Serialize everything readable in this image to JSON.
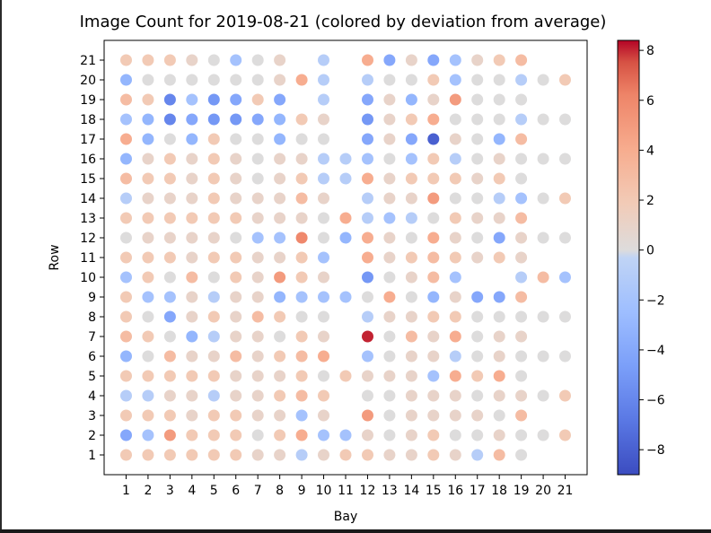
{
  "chart_data": {
    "type": "scatter",
    "title": "Image Count for 2019-08-21 (colored by deviation from average)",
    "xlabel": "Bay",
    "ylabel": "Row",
    "x_ticks": [
      "1",
      "2",
      "3",
      "4",
      "5",
      "6",
      "7",
      "8",
      "9",
      "10",
      "11",
      "12",
      "13",
      "14",
      "15",
      "16",
      "17",
      "18",
      "19",
      "20",
      "21"
    ],
    "y_ticks": [
      "1",
      "2",
      "3",
      "4",
      "5",
      "6",
      "7",
      "8",
      "9",
      "10",
      "11",
      "12",
      "13",
      "14",
      "15",
      "16",
      "17",
      "18",
      "19",
      "20",
      "21"
    ],
    "xlim": [
      0,
      22
    ],
    "ylim": [
      0,
      22
    ],
    "colorbar": {
      "colormap": "coolwarm",
      "range": [
        -9,
        8.4
      ],
      "ticks": [
        "-8",
        "-6",
        "-4",
        "-2",
        "0",
        "2",
        "4",
        "6",
        "8"
      ]
    },
    "grid": false,
    "rows": {
      "21": [
        2,
        2,
        2,
        1,
        0,
        -2,
        0,
        1,
        null,
        -1,
        null,
        4,
        -4,
        1,
        -4,
        -2,
        1,
        2,
        3,
        null,
        null
      ],
      "20": [
        -3,
        0,
        0,
        0,
        0,
        0,
        0,
        1,
        4,
        -1,
        null,
        -1,
        0,
        0,
        2,
        -2,
        0,
        0,
        -1,
        0,
        2
      ],
      "19": [
        3,
        2,
        -6,
        -2,
        -5,
        -4,
        2,
        -4,
        null,
        -1,
        null,
        -4,
        1,
        -3,
        1,
        5,
        0,
        0,
        0,
        null,
        null
      ],
      "18": [
        -2,
        -3,
        -6,
        -4,
        -5,
        -5,
        -4,
        -3,
        2,
        1,
        null,
        -5,
        1,
        2,
        4,
        0,
        0,
        0,
        -1,
        0,
        0
      ],
      "17": [
        4,
        -3,
        0,
        -3,
        2,
        0,
        0,
        -3,
        0,
        0,
        null,
        -4,
        1,
        -4,
        -8,
        1,
        0,
        -3,
        3,
        null,
        null
      ],
      "16": [
        -3,
        1,
        2,
        1,
        2,
        1,
        0,
        1,
        1,
        -1,
        -1,
        -2,
        0,
        -2,
        2,
        -1,
        0,
        1,
        0,
        0,
        0
      ],
      "15": [
        3,
        2,
        2,
        1,
        2,
        1,
        0,
        1,
        2,
        -1,
        -1,
        4,
        1,
        2,
        2,
        2,
        1,
        2,
        0,
        null,
        null
      ],
      "14": [
        -1,
        1,
        1,
        1,
        2,
        1,
        1,
        1,
        3,
        1,
        null,
        -1,
        1,
        1,
        5,
        0,
        0,
        -1,
        -2,
        0,
        2
      ],
      "13": [
        2,
        2,
        2,
        2,
        2,
        2,
        1,
        1,
        1,
        0,
        4,
        -1,
        -2,
        -1,
        0,
        2,
        1,
        1,
        3,
        null,
        null
      ],
      "12": [
        0,
        1,
        1,
        1,
        1,
        0,
        -2,
        -2,
        6,
        0,
        -3,
        4,
        1,
        0,
        4,
        1,
        0,
        -4,
        1,
        0,
        0
      ],
      "11": [
        2,
        2,
        2,
        1,
        2,
        2,
        1,
        1,
        2,
        -2,
        null,
        4,
        1,
        2,
        3,
        2,
        1,
        2,
        1,
        null,
        null
      ],
      "10": [
        -2,
        2,
        0,
        3,
        0,
        2,
        1,
        5,
        2,
        1,
        null,
        -5,
        0,
        1,
        3,
        -2,
        null,
        null,
        -1,
        3,
        -2
      ],
      "9": [
        2,
        -2,
        -2,
        1,
        -1,
        1,
        1,
        -3,
        -2,
        -2,
        -2,
        0,
        4,
        0,
        -3,
        1,
        -4,
        -4,
        3,
        null,
        null
      ],
      "8": [
        2,
        0,
        -4,
        1,
        2,
        1,
        3,
        2,
        0,
        0,
        null,
        -1,
        1,
        1,
        2,
        2,
        0,
        0,
        0,
        0,
        0
      ],
      "7": [
        3,
        2,
        0,
        -3,
        -1,
        1,
        1,
        0,
        2,
        1,
        null,
        8,
        0,
        3,
        1,
        4,
        0,
        1,
        1,
        null,
        null
      ],
      "6": [
        -3,
        0,
        3,
        1,
        1,
        3,
        1,
        2,
        3,
        4,
        null,
        -2,
        0,
        1,
        1,
        -1,
        0,
        1,
        0,
        0,
        0
      ],
      "5": [
        2,
        2,
        2,
        2,
        2,
        1,
        1,
        1,
        2,
        0,
        2,
        1,
        1,
        1,
        -2,
        4,
        2,
        4,
        0,
        null,
        null
      ],
      "4": [
        -1,
        -1,
        1,
        1,
        -1,
        1,
        1,
        2,
        3,
        2,
        null,
        0,
        0,
        1,
        1,
        1,
        0,
        1,
        1,
        0,
        2
      ],
      "3": [
        2,
        2,
        2,
        1,
        2,
        2,
        1,
        1,
        -2,
        1,
        null,
        5,
        0,
        1,
        1,
        1,
        1,
        0,
        3,
        null,
        null
      ],
      "2": [
        -4,
        -2,
        5,
        2,
        2,
        2,
        0,
        2,
        4,
        -2,
        -2,
        1,
        0,
        1,
        2,
        0,
        0,
        1,
        0,
        0,
        2
      ],
      "1": [
        2,
        2,
        2,
        2,
        2,
        2,
        1,
        1,
        -1,
        1,
        2,
        2,
        1,
        1,
        2,
        1,
        -1,
        3,
        0,
        null,
        null
      ]
    }
  }
}
